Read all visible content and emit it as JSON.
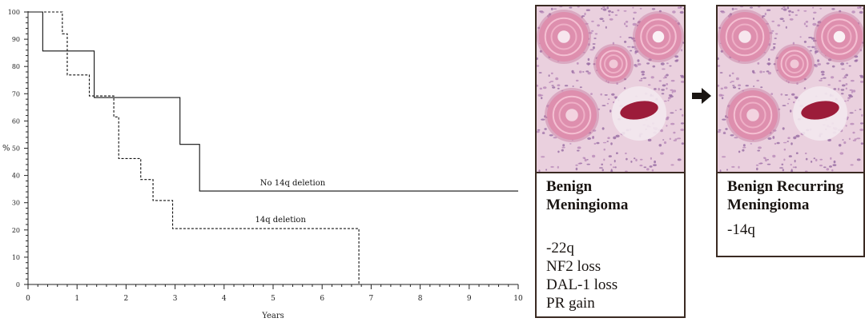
{
  "chart_data": {
    "type": "line",
    "chart_style": "step (Kaplan-Meier)",
    "xlabel": "Years",
    "ylabel": "%",
    "xlim": [
      0,
      10
    ],
    "ylim": [
      0,
      100
    ],
    "x_ticks": [
      "0",
      "1",
      "2",
      "3",
      "4",
      "5",
      "6",
      "7",
      "8",
      "9",
      "10"
    ],
    "y_ticks": [
      "0",
      "10",
      "20",
      "30",
      "40",
      "50",
      "60",
      "70",
      "80",
      "90",
      "100"
    ],
    "grid": false,
    "series": [
      {
        "name": "No 14q deletion",
        "line": "solid",
        "x": [
          0,
          0.3,
          1.35,
          3.1,
          3.5,
          10
        ],
        "y": [
          100,
          85.7,
          68.6,
          51.4,
          34.3,
          34.3
        ]
      },
      {
        "name": "14q deletion",
        "line": "dashed",
        "x": [
          0,
          0.7,
          0.8,
          1.25,
          1.75,
          1.85,
          2.3,
          2.55,
          2.95,
          6.75
        ],
        "y": [
          100,
          92,
          76.9,
          69.2,
          61.5,
          46.2,
          38.5,
          30.8,
          20.5,
          0
        ]
      }
    ]
  },
  "panels": {
    "benign": {
      "title_line1": "Benign",
      "title_line2": "Meningioma",
      "items": [
        "-22q",
        "NF2 loss",
        "DAL-1 loss",
        "PR gain"
      ]
    },
    "recurring": {
      "title_line1": "Benign Recurring",
      "title_line2": "Meningioma",
      "items": [
        "-14q"
      ]
    }
  },
  "colors": {
    "line": "#111111",
    "frame": "#3a2a22",
    "tissue_bg": "#e9c3d8",
    "psammoma": "#d9869f"
  }
}
